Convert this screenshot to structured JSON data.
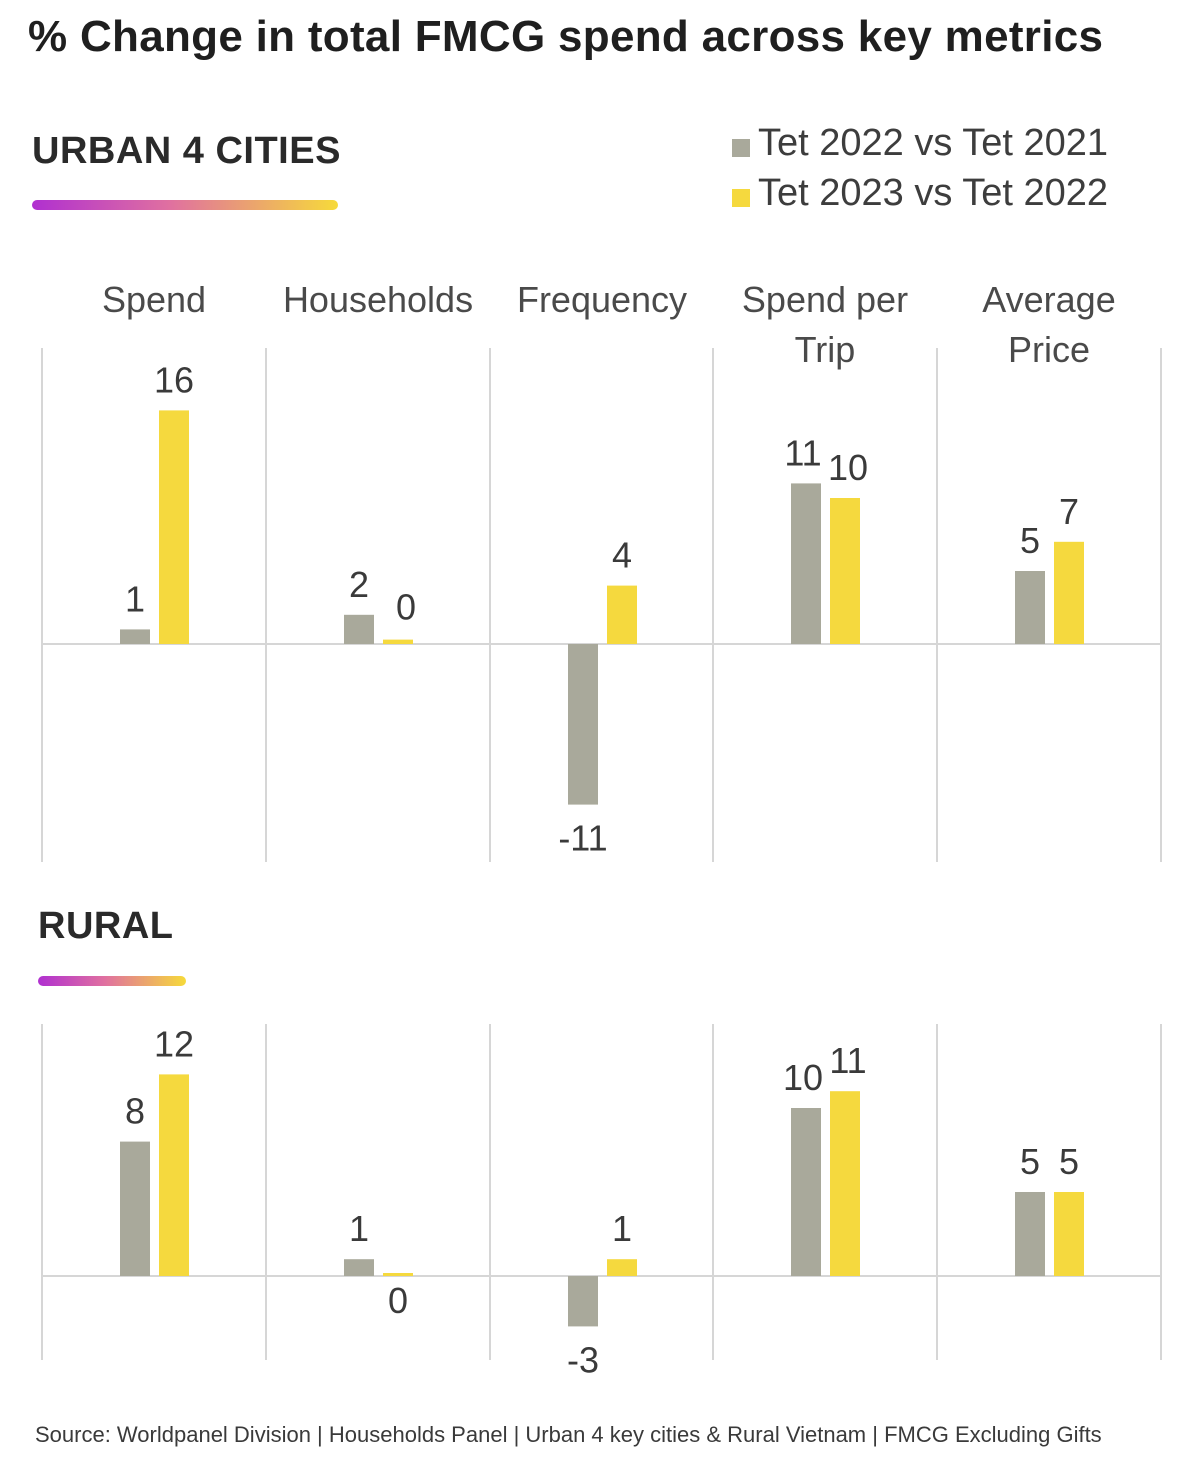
{
  "title": "% Change in total FMCG spend across key metrics",
  "legend": [
    {
      "label": "Tet 2022 vs Tet 2021",
      "color": "#a9a99b"
    },
    {
      "label": "Tet 2023 vs Tet 2022",
      "color": "#f5d93e"
    }
  ],
  "source": "Source: Worldpanel Division | Households Panel | Urban 4 key cities & Rural Vietnam | FMCG Excluding Gifts",
  "chart_data": [
    {
      "type": "bar",
      "title": "URBAN 4 CITIES",
      "categories": [
        "Spend",
        "Households",
        "Frequency",
        "Spend per Trip",
        "Average Price"
      ],
      "series": [
        {
          "name": "Tet 2022 vs Tet 2021",
          "color": "#a9a99b",
          "values": [
            1,
            2,
            -11,
            11,
            5
          ],
          "labels": [
            "1",
            "2",
            "-11",
            "11",
            "5"
          ]
        },
        {
          "name": "Tet 2023 vs Tet 2022",
          "color": "#f5d93e",
          "values": [
            16,
            0.3,
            4,
            10,
            7
          ],
          "labels": [
            "16",
            "0",
            "4",
            "10",
            "7"
          ]
        }
      ],
      "unit": "% change"
    },
    {
      "type": "bar",
      "title": "RURAL",
      "categories": [
        "Spend",
        "Households",
        "Frequency",
        "Spend per Trip",
        "Average Price"
      ],
      "series": [
        {
          "name": "Tet 2022 vs Tet 2021",
          "color": "#a9a99b",
          "values": [
            8,
            1,
            -3,
            10,
            5
          ],
          "labels": [
            "8",
            "1",
            "-3",
            "10",
            "5"
          ]
        },
        {
          "name": "Tet 2023 vs Tet 2022",
          "color": "#f5d93e",
          "values": [
            12,
            0.1,
            1,
            11,
            5
          ],
          "labels": [
            "12",
            "0",
            "1",
            "11",
            "5"
          ]
        }
      ],
      "unit": "% change"
    }
  ],
  "category_display": [
    [
      "Spend"
    ],
    [
      "Households"
    ],
    [
      "Frequency"
    ],
    [
      "Spend per",
      "Trip"
    ],
    [
      "Average",
      "Price"
    ]
  ]
}
